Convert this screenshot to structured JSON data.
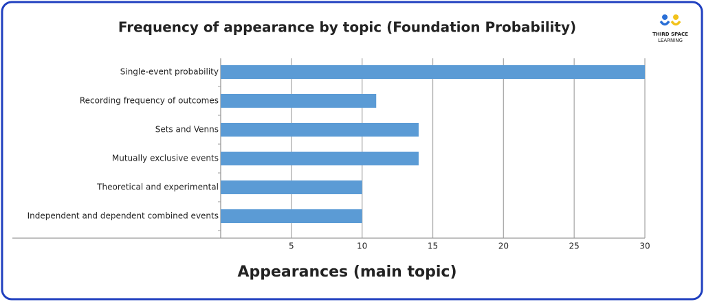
{
  "chart_data": {
    "type": "barh",
    "title": "Frequency of appearance by topic (Foundation Probability)",
    "x_label": "Appearances (main topic)",
    "categories": [
      "Single-event probability",
      "Recording frequency of outcomes",
      "Sets and Venns",
      "Mutually exclusive events",
      "Theoretical and experimental",
      "Independent and dependent combined events"
    ],
    "values": [
      30,
      11,
      14,
      14,
      10,
      10
    ],
    "color": "#5b9bd5",
    "xlim": [
      0,
      30
    ],
    "xticks": [
      5,
      10,
      15,
      20,
      25,
      30
    ],
    "grid": true
  },
  "logo": {
    "line1": "THIRD SPACE",
    "line2": "LEARNING"
  }
}
